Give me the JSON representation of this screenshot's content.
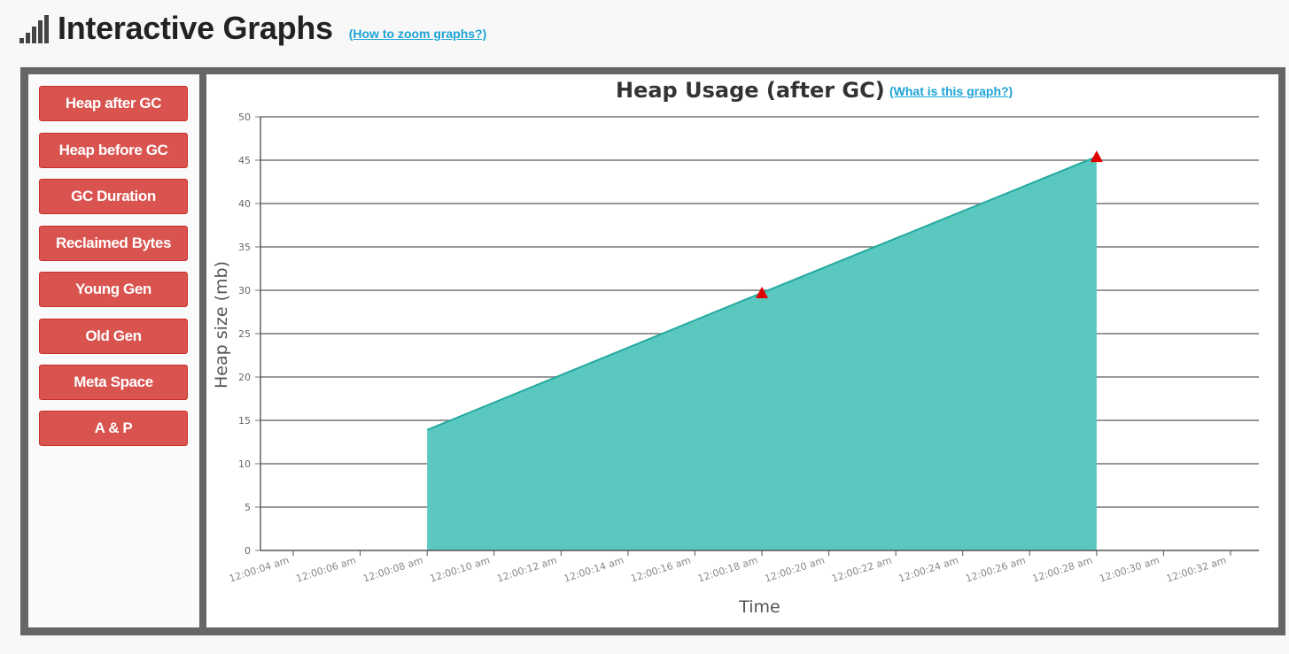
{
  "header": {
    "title": "Interactive Graphs",
    "zoom_link": "(How to zoom graphs?)",
    "icon": "signal-bars-icon"
  },
  "sidebar": {
    "buttons": [
      {
        "label": "Heap after GC"
      },
      {
        "label": "Heap before GC"
      },
      {
        "label": "GC Duration"
      },
      {
        "label": "Reclaimed Bytes"
      },
      {
        "label": "Young Gen"
      },
      {
        "label": "Old Gen"
      },
      {
        "label": "Meta Space"
      },
      {
        "label": "A & P"
      }
    ],
    "button_color": "#d9534f"
  },
  "chart": {
    "title": "Heap Usage (after GC)",
    "help_link": "(What is this graph?)"
  },
  "chart_data": {
    "type": "area",
    "title": "Heap Usage (after GC)",
    "xlabel": "Time",
    "ylabel": "Heap size (mb)",
    "ylim": [
      0,
      50
    ],
    "yticks": [
      0,
      5,
      10,
      15,
      20,
      25,
      30,
      35,
      40,
      45,
      50
    ],
    "xticks": [
      "12:00:04 am",
      "12:00:06 am",
      "12:00:08 am",
      "12:00:10 am",
      "12:00:12 am",
      "12:00:14 am",
      "12:00:16 am",
      "12:00:18 am",
      "12:00:20 am",
      "12:00:22 am",
      "12:00:24 am",
      "12:00:26 am",
      "12:00:28 am",
      "12:00:30 am",
      "12:00:32 am"
    ],
    "xlim": [
      "12:00:04 am",
      "12:00:32 am"
    ],
    "grid": true,
    "area_color": "#5bc8c0",
    "line_color": "#24aa9e",
    "marker_color": "#e00000",
    "series": [
      {
        "points": [
          {
            "x": "12:00:08 am",
            "y": 13.9
          },
          {
            "x": "12:00:18 am",
            "y": 29.7,
            "marker": "triangle"
          },
          {
            "x": "12:00:28 am",
            "y": 45.4,
            "marker": "triangle"
          }
        ]
      }
    ]
  }
}
